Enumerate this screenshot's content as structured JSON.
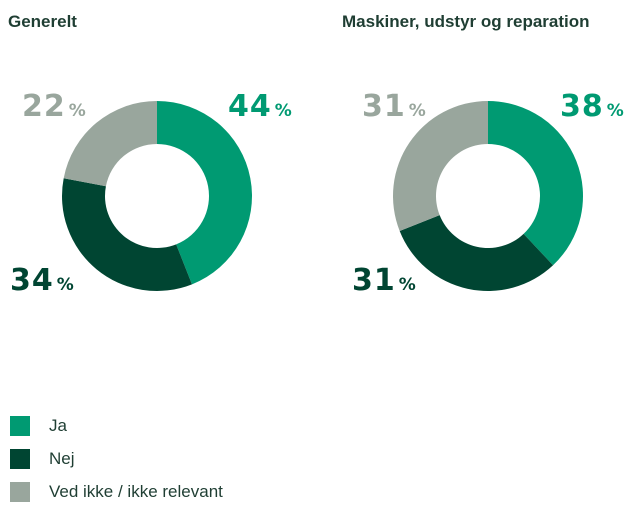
{
  "colors": {
    "ja": "#009a72",
    "nej": "#004532",
    "ved_ikke": "#99a69d",
    "text": "#1f3e33"
  },
  "chart_data": [
    {
      "type": "pie",
      "variant": "donut",
      "title": "Generelt",
      "categories": [
        "Ja",
        "Nej",
        "Ved ikke / ikke relevant"
      ],
      "values": [
        44,
        34,
        22
      ],
      "unit": "%",
      "data_labels": [
        "44",
        "34",
        "22"
      ]
    },
    {
      "type": "pie",
      "variant": "donut",
      "title": "Maskiner, udstyr og reparation",
      "categories": [
        "Ja",
        "Nej",
        "Ved ikke / ikke relevant"
      ],
      "values": [
        38,
        31,
        31
      ],
      "unit": "%",
      "data_labels": [
        "38",
        "31",
        "31"
      ]
    }
  ],
  "legend": {
    "items": [
      {
        "label": "Ja",
        "color_key": "ja"
      },
      {
        "label": "Nej",
        "color_key": "nej"
      },
      {
        "label": "Ved ikke / ikke relevant",
        "color_key": "ved_ikke"
      }
    ]
  }
}
